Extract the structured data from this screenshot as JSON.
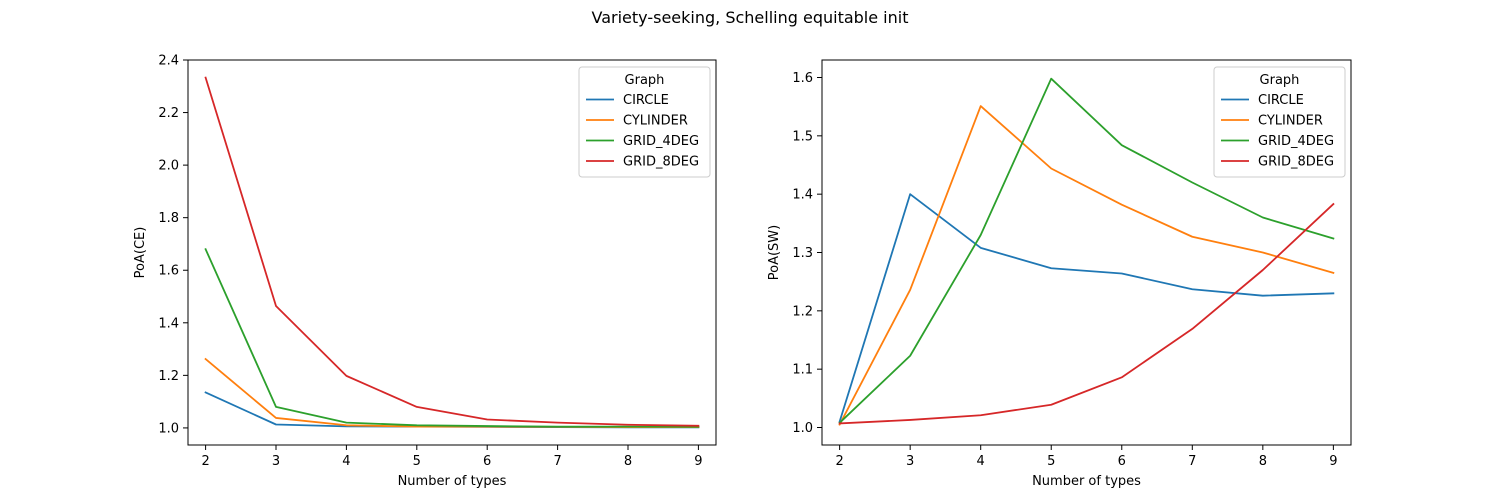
{
  "suptitle": "Variety-seeking, Schelling equitable init",
  "chart_data": [
    {
      "type": "line",
      "xlabel": "Number of types",
      "ylabel": "PoA(CE)",
      "xlim": [
        1.75,
        9.25
      ],
      "ylim": [
        0.935,
        2.4
      ],
      "xticks": [
        2,
        3,
        4,
        5,
        6,
        7,
        8,
        9
      ],
      "yticks": [
        "1.0",
        "1.2",
        "1.4",
        "1.6",
        "1.8",
        "2.0",
        "2.2",
        "2.4"
      ],
      "x": [
        2,
        3,
        4,
        5,
        6,
        7,
        8,
        9
      ],
      "legend": {
        "title": "Graph",
        "position": "top-right"
      },
      "series": [
        {
          "name": "CIRCLE",
          "color": "#1f77b4",
          "values": [
            1.135,
            1.013,
            1.006,
            1.005,
            1.004,
            1.003,
            1.002,
            1.002
          ]
        },
        {
          "name": "CYLINDER",
          "color": "#ff7f0e",
          "values": [
            1.262,
            1.038,
            1.01,
            1.005,
            1.005,
            1.004,
            1.003,
            1.003
          ]
        },
        {
          "name": "GRID_4DEG",
          "color": "#2ca02c",
          "values": [
            1.68,
            1.08,
            1.02,
            1.01,
            1.007,
            1.005,
            1.005,
            1.004
          ]
        },
        {
          "name": "GRID_8DEG",
          "color": "#d62728",
          "values": [
            2.333,
            1.464,
            1.198,
            1.08,
            1.032,
            1.02,
            1.012,
            1.008
          ]
        }
      ]
    },
    {
      "type": "line",
      "xlabel": "Number of types",
      "ylabel": "PoA(SW)",
      "xlim": [
        1.75,
        9.25
      ],
      "ylim": [
        0.97,
        1.63
      ],
      "xticks": [
        2,
        3,
        4,
        5,
        6,
        7,
        8,
        9
      ],
      "yticks": [
        "1.0",
        "1.1",
        "1.2",
        "1.3",
        "1.4",
        "1.5",
        "1.6"
      ],
      "x": [
        2,
        3,
        4,
        5,
        6,
        7,
        8,
        9
      ],
      "legend": {
        "title": "Graph",
        "position": "top-right"
      },
      "series": [
        {
          "name": "CIRCLE",
          "color": "#1f77b4",
          "values": [
            1.01,
            1.4,
            1.308,
            1.273,
            1.264,
            1.237,
            1.226,
            1.23
          ]
        },
        {
          "name": "CYLINDER",
          "color": "#ff7f0e",
          "values": [
            1.005,
            1.236,
            1.551,
            1.444,
            1.382,
            1.327,
            1.3,
            1.265
          ]
        },
        {
          "name": "GRID_4DEG",
          "color": "#2ca02c",
          "values": [
            1.008,
            1.123,
            1.33,
            1.598,
            1.484,
            1.42,
            1.36,
            1.324
          ]
        },
        {
          "name": "GRID_8DEG",
          "color": "#d62728",
          "values": [
            1.007,
            1.013,
            1.021,
            1.039,
            1.086,
            1.169,
            1.27,
            1.383
          ]
        }
      ]
    }
  ]
}
